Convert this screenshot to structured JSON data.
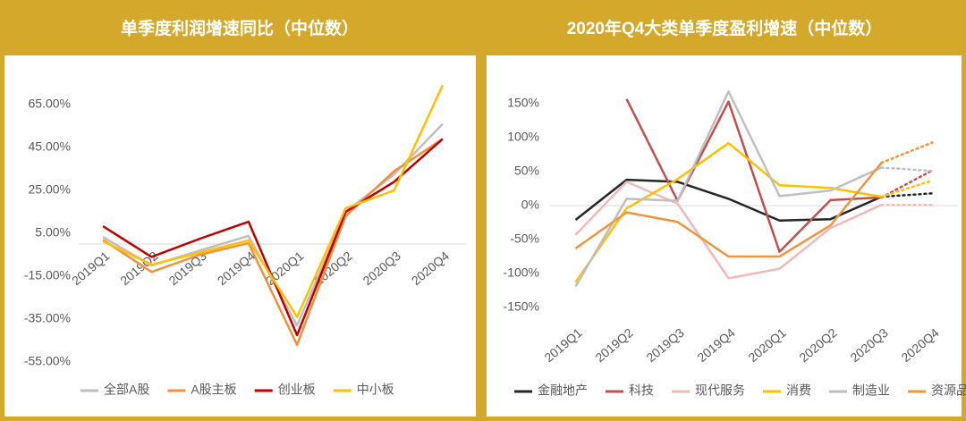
{
  "chart_data": [
    {
      "type": "line",
      "title": "单季度利润增速同比（中位数）",
      "categories": [
        "2019Q1",
        "2019Q2",
        "2019Q3",
        "2019Q4",
        "2020Q1",
        "2020Q2",
        "2020Q3",
        "2020Q4"
      ],
      "series": [
        {
          "name": "全部A股",
          "color": "#BFBFBF",
          "values": [
            3.3,
            -10,
            -3,
            3.8,
            -38,
            15,
            32.5,
            56
          ]
        },
        {
          "name": "A股主板",
          "color": "#F0913F",
          "values": [
            2,
            -13,
            -5,
            0.4,
            -47,
            13,
            34,
            49
          ]
        },
        {
          "name": "创业板",
          "color": "#C00000",
          "values": [
            8.3,
            -6,
            2.5,
            10.4,
            -42.5,
            15,
            29,
            49
          ]
        },
        {
          "name": "中小板",
          "color": "#FFC000",
          "values": [
            1.3,
            -9.6,
            -4,
            1.7,
            -34,
            16.7,
            25,
            74
          ]
        }
      ],
      "ylim": [
        -60,
        80
      ],
      "yticks": [
        {
          "value": -55,
          "label": "-55.00%"
        },
        {
          "value": -35,
          "label": "-35.00%"
        },
        {
          "value": -15,
          "label": "-15.00%"
        },
        {
          "value": 5,
          "label": "5.00%"
        },
        {
          "value": 25,
          "label": "25.00%"
        },
        {
          "value": 45,
          "label": "45.00%"
        },
        {
          "value": 65,
          "label": "65.00%"
        }
      ],
      "legend": "bottom",
      "dotted_last_segment": false
    },
    {
      "type": "line",
      "title": "2020年Q4大类单季度盈利增速（中位数）",
      "categories": [
        "2019Q1",
        "2019Q2",
        "2019Q3",
        "2019Q4",
        "2020Q1",
        "2020Q2",
        "2020Q3",
        "2020Q4"
      ],
      "series": [
        {
          "name": "金融地产",
          "color": "#262626",
          "values": [
            -21,
            38,
            35,
            10,
            -22,
            -20,
            13,
            18
          ]
        },
        {
          "name": "科技",
          "color": "#C0504D",
          "values": [
            null,
            157,
            7,
            153,
            -68,
            8,
            12,
            52
          ]
        },
        {
          "name": "现代服务",
          "color": "#F2B8B8",
          "values": [
            -43,
            35,
            3,
            -107,
            -93,
            -33,
            1,
            1
          ]
        },
        {
          "name": "消费",
          "color": "#FFC000",
          "values": [
            -113,
            -4,
            39,
            92,
            30,
            26,
            13,
            37
          ]
        },
        {
          "name": "制造业",
          "color": "#BFBFBF",
          "values": [
            -119,
            10,
            7,
            168,
            14,
            22,
            56,
            51
          ]
        },
        {
          "name": "资源品",
          "color": "#F0953F",
          "values": [
            -63,
            -10,
            -24,
            -75,
            -75,
            -29,
            63,
            93
          ]
        }
      ],
      "ylim": [
        -175,
        175
      ],
      "yticks": [
        {
          "value": -150,
          "label": "-150%"
        },
        {
          "value": -100,
          "label": "-100%"
        },
        {
          "value": -50,
          "label": "-50%"
        },
        {
          "value": 0,
          "label": "0%"
        },
        {
          "value": 50,
          "label": "50%"
        },
        {
          "value": 100,
          "label": "100%"
        },
        {
          "value": 150,
          "label": "150%"
        }
      ],
      "legend": "bottom",
      "dotted_last_segment": true
    }
  ]
}
